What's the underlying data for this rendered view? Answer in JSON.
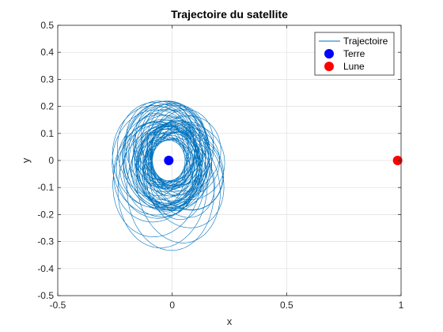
{
  "chart_data": {
    "type": "line",
    "title": "Trajectoire du satellite",
    "xlabel": "x",
    "ylabel": "y",
    "xlim": [
      -0.5,
      1
    ],
    "ylim": [
      -0.5,
      0.5
    ],
    "xticks": [
      "-0.5",
      "0",
      "0.5",
      "1"
    ],
    "yticks": [
      "-0.5",
      "-0.4",
      "-0.3",
      "-0.2",
      "-0.1",
      "0",
      "0.1",
      "0.2",
      "0.3",
      "0.4",
      "0.5"
    ],
    "grid": true,
    "legend_position": "top-right",
    "series": [
      {
        "name": "Trajectoire",
        "kind": "line",
        "color": "#0072BD",
        "center": [
          -0.015,
          0
        ],
        "inner_radius": 0.075,
        "outer_radius": 0.45
      },
      {
        "name": "Terre",
        "kind": "marker",
        "color": "#0000FF",
        "x": [
          -0.015
        ],
        "y": [
          0
        ]
      },
      {
        "name": "Lune",
        "kind": "marker",
        "color": "#FF0000",
        "x": [
          0.985
        ],
        "y": [
          0
        ]
      }
    ],
    "legend": [
      "Trajectoire",
      "Terre",
      "Lune"
    ]
  }
}
